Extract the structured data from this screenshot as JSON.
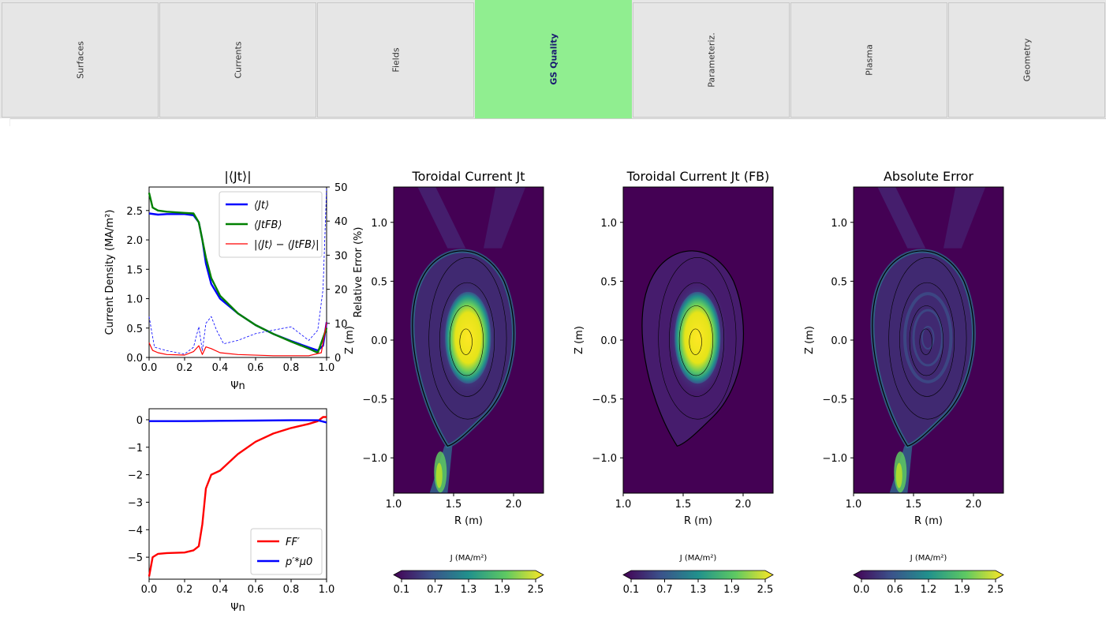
{
  "tabs": [
    {
      "label": "Surfaces",
      "active": false
    },
    {
      "label": "Currents",
      "active": false
    },
    {
      "label": "Fields",
      "active": false
    },
    {
      "label": "GS Quality",
      "active": true
    },
    {
      "label": "Parameteriz.",
      "active": false
    },
    {
      "label": "Plasma",
      "active": false
    },
    {
      "label": "Geometry",
      "active": false
    }
  ],
  "colors": {
    "active_tab": "#90ee90",
    "blue": "#0000ff",
    "green": "#008000",
    "red": "#ff0000"
  },
  "chart_data": [
    {
      "type": "line",
      "title": "|⟨Jt⟩|",
      "xlabel": "Ψn",
      "ylabel": "Current Density (MA/m²)",
      "ylabel2": "Relative Error (%)",
      "xlim": [
        0,
        1
      ],
      "ylim": [
        0,
        2.9
      ],
      "ylim2": [
        0,
        50
      ],
      "xticks": [
        "0.0",
        "0.2",
        "0.4",
        "0.6",
        "0.8",
        "1.0"
      ],
      "yticks": [
        "0.0",
        "0.5",
        "1.0",
        "1.5",
        "2.0",
        "2.5"
      ],
      "yticks2": [
        "0",
        "10",
        "20",
        "30",
        "40",
        "50"
      ],
      "legend": "top-right",
      "series": [
        {
          "name": "⟨Jt⟩",
          "color": "#0000ff",
          "x": [
            0,
            0.05,
            0.1,
            0.2,
            0.25,
            0.28,
            0.3,
            0.32,
            0.35,
            0.4,
            0.5,
            0.6,
            0.7,
            0.8,
            0.9,
            0.95,
            0.98,
            1.0
          ],
          "values": [
            2.45,
            2.43,
            2.44,
            2.44,
            2.42,
            2.3,
            2.0,
            1.6,
            1.25,
            1.0,
            0.75,
            0.55,
            0.4,
            0.28,
            0.17,
            0.12,
            0.2,
            0.6
          ]
        },
        {
          "name": "⟨JtFB⟩",
          "color": "#008000",
          "x": [
            0,
            0.02,
            0.05,
            0.1,
            0.2,
            0.25,
            0.28,
            0.3,
            0.32,
            0.35,
            0.4,
            0.5,
            0.6,
            0.7,
            0.8,
            0.9,
            0.95,
            1.0
          ],
          "values": [
            2.8,
            2.55,
            2.5,
            2.48,
            2.46,
            2.45,
            2.3,
            2.0,
            1.7,
            1.35,
            1.05,
            0.75,
            0.55,
            0.4,
            0.27,
            0.15,
            0.08,
            0.5
          ]
        },
        {
          "name": "|⟨Jt⟩ − ⟨JtFB⟩|",
          "color": "#ff0000",
          "x": [
            0,
            0.02,
            0.05,
            0.1,
            0.2,
            0.25,
            0.28,
            0.3,
            0.32,
            0.35,
            0.4,
            0.5,
            0.7,
            0.9,
            0.97,
            1.0
          ],
          "values": [
            0.25,
            0.12,
            0.08,
            0.05,
            0.04,
            0.1,
            0.2,
            0.05,
            0.18,
            0.15,
            0.08,
            0.05,
            0.03,
            0.03,
            0.08,
            0.6
          ]
        },
        {
          "name": "Relative Error",
          "color": "#0000ff",
          "axis": "right",
          "dashed": true,
          "x": [
            0,
            0.03,
            0.1,
            0.2,
            0.25,
            0.28,
            0.3,
            0.32,
            0.35,
            0.38,
            0.42,
            0.5,
            0.6,
            0.7,
            0.8,
            0.9,
            0.95,
            0.98,
            1.0
          ],
          "values": [
            12,
            3,
            2,
            1,
            3,
            9,
            2,
            10,
            12,
            8,
            4,
            5,
            7,
            8,
            9,
            5,
            8,
            20,
            50
          ]
        }
      ]
    },
    {
      "type": "line",
      "xlabel": "Ψn",
      "xlim": [
        0,
        1
      ],
      "ylim": [
        -5.8,
        0.4
      ],
      "xticks": [
        "0.0",
        "0.2",
        "0.4",
        "0.6",
        "0.8",
        "1.0"
      ],
      "yticks": [
        "0",
        "−1",
        "−2",
        "−3",
        "−4",
        "−5"
      ],
      "legend": "bottom-right",
      "series": [
        {
          "name": "FF′",
          "color": "#ff0000",
          "x": [
            0,
            0.02,
            0.05,
            0.1,
            0.2,
            0.25,
            0.28,
            0.3,
            0.32,
            0.35,
            0.4,
            0.45,
            0.5,
            0.6,
            0.7,
            0.8,
            0.9,
            0.95,
            0.98,
            1.0
          ],
          "values": [
            -5.7,
            -5.0,
            -4.88,
            -4.85,
            -4.83,
            -4.75,
            -4.6,
            -3.8,
            -2.5,
            -2.0,
            -1.85,
            -1.55,
            -1.25,
            -0.8,
            -0.5,
            -0.3,
            -0.15,
            -0.05,
            0.1,
            0.1
          ]
        },
        {
          "name": "p′*μ0",
          "color": "#0000ff",
          "x": [
            0,
            0.2,
            0.4,
            0.6,
            0.8,
            0.9,
            0.95,
            1.0
          ],
          "values": [
            -0.05,
            -0.05,
            -0.04,
            -0.03,
            -0.02,
            -0.02,
            -0.02,
            -0.1
          ]
        }
      ]
    },
    {
      "type": "heatmap",
      "title": "Toroidal Current Jt",
      "xlabel": "R (m)",
      "ylabel": "Z (m)",
      "xlim": [
        1.0,
        2.25
      ],
      "ylim": [
        -1.3,
        1.3
      ],
      "xticks": [
        "1.0",
        "1.5",
        "2.0"
      ],
      "yticks": [
        "1.0",
        "0.5",
        "0.0",
        "−0.5",
        "−1.0"
      ],
      "colorbar_label": "J (MA/m²)",
      "colorbar_ticks": [
        "0.1",
        "0.7",
        "1.3",
        "1.9",
        "2.5"
      ],
      "peak": 2.5
    },
    {
      "type": "heatmap",
      "title": "Toroidal Current Jt (FB)",
      "xlabel": "R (m)",
      "ylabel": "Z (m)",
      "xlim": [
        1.0,
        2.25
      ],
      "ylim": [
        -1.3,
        1.3
      ],
      "xticks": [
        "1.0",
        "1.5",
        "2.0"
      ],
      "yticks": [
        "1.0",
        "0.5",
        "0.0",
        "−0.5",
        "−1.0"
      ],
      "colorbar_label": "J (MA/m²)",
      "colorbar_ticks": [
        "0.1",
        "0.7",
        "1.3",
        "1.9",
        "2.5"
      ],
      "peak": 2.5
    },
    {
      "type": "heatmap",
      "title": "Absolute Error",
      "xlabel": "R (m)",
      "ylabel": "Z (m)",
      "xlim": [
        1.0,
        2.25
      ],
      "ylim": [
        -1.3,
        1.3
      ],
      "xticks": [
        "1.0",
        "1.5",
        "2.0"
      ],
      "yticks": [
        "1.0",
        "0.5",
        "0.0",
        "−0.5",
        "−1.0"
      ],
      "colorbar_label": "J (MA/m²)",
      "colorbar_ticks": [
        "0.0",
        "0.6",
        "1.2",
        "1.9",
        "2.5"
      ],
      "peak": 2.5
    }
  ]
}
